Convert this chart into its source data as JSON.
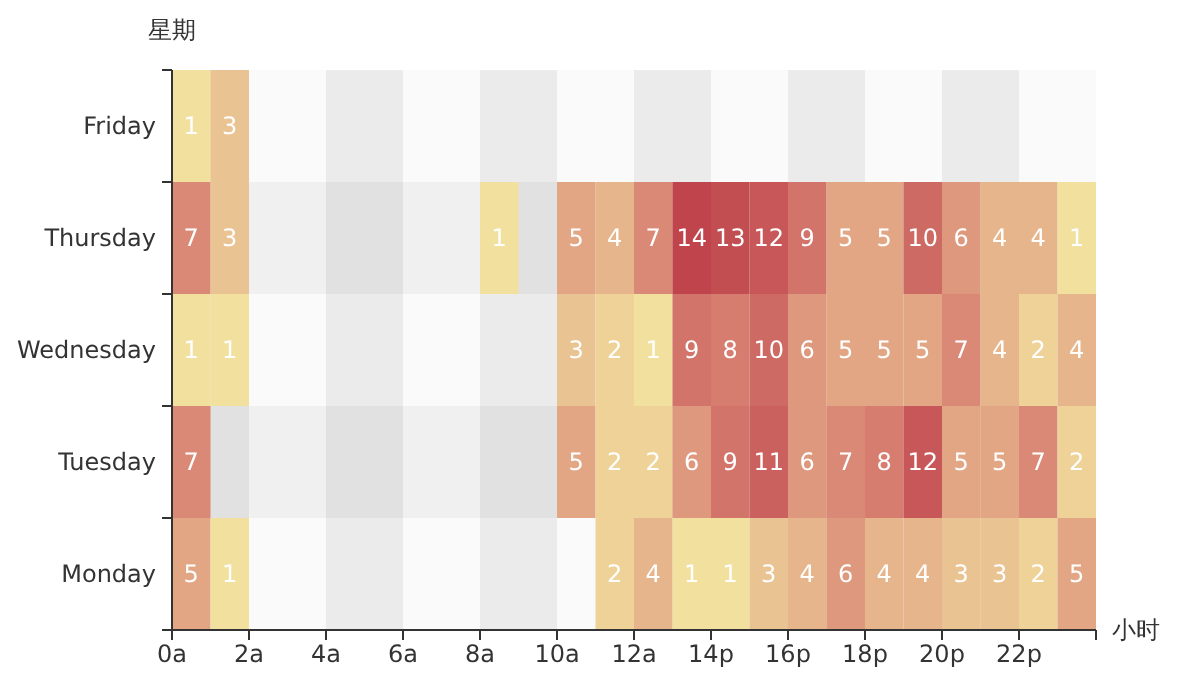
{
  "chart_data": {
    "type": "heatmap",
    "xlabel": "小时",
    "ylabel": "星期",
    "categories": [
      "0a",
      null,
      "2a",
      null,
      "4a",
      null,
      "6a",
      null,
      "8a",
      null,
      "10a",
      null,
      "12a",
      null,
      "14p",
      null,
      "16p",
      null,
      "18p",
      null,
      "20p",
      null,
      "22p",
      null
    ],
    "y_categories": [
      "Friday",
      "Thursday",
      "Wednesday",
      "Tuesday",
      "Monday"
    ],
    "cells": [
      [
        1,
        3,
        null,
        null,
        null,
        null,
        null,
        null,
        null,
        null,
        null,
        null,
        null,
        null,
        null,
        null,
        null,
        null,
        null,
        null,
        null,
        null,
        null,
        null
      ],
      [
        7,
        3,
        null,
        null,
        null,
        null,
        null,
        null,
        1,
        null,
        5,
        4,
        7,
        14,
        13,
        12,
        9,
        5,
        5,
        10,
        6,
        4,
        4,
        1
      ],
      [
        1,
        1,
        null,
        null,
        null,
        null,
        null,
        null,
        null,
        null,
        3,
        2,
        1,
        9,
        8,
        10,
        6,
        5,
        5,
        5,
        7,
        4,
        2,
        4
      ],
      [
        7,
        null,
        null,
        null,
        null,
        null,
        null,
        null,
        null,
        null,
        5,
        2,
        2,
        6,
        9,
        11,
        6,
        7,
        8,
        12,
        5,
        5,
        7,
        2
      ],
      [
        5,
        1,
        null,
        null,
        null,
        null,
        null,
        null,
        null,
        null,
        null,
        2,
        4,
        1,
        1,
        3,
        4,
        6,
        4,
        4,
        3,
        3,
        2,
        5
      ]
    ],
    "data_labels": true
  }
}
